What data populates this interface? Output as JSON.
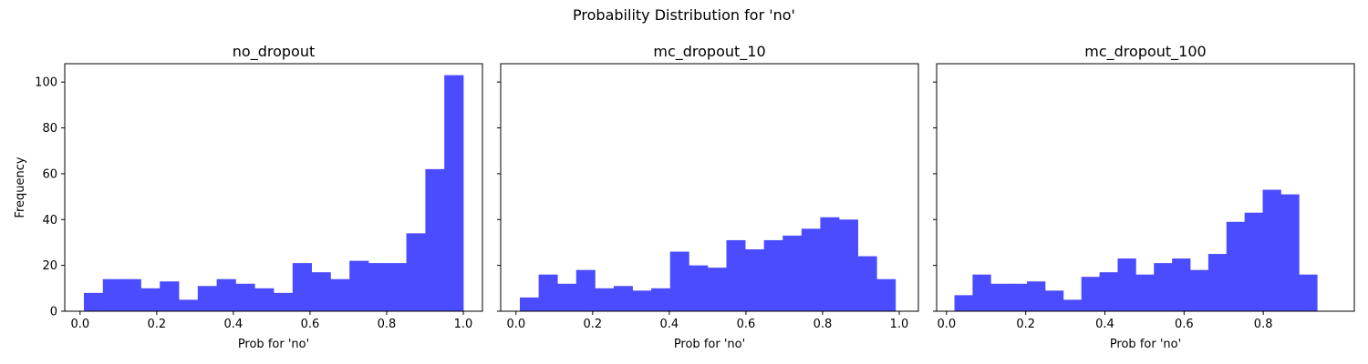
{
  "figure": {
    "suptitle": "Probability Distribution for 'no'",
    "bar_color": "#4b4bff",
    "edge_color": "#000000"
  },
  "chart_data": [
    {
      "type": "bar",
      "title": "no_dropout",
      "xlabel": "Prob for 'no'",
      "ylabel": "Frequency",
      "xlim": [
        -0.04,
        1.05
      ],
      "ylim": [
        0,
        108
      ],
      "x_ticks": [
        0.0,
        0.2,
        0.4,
        0.6,
        0.8,
        1.0
      ],
      "x_tick_labels": [
        "0.0",
        "0.2",
        "0.4",
        "0.6",
        "0.8",
        "1.0"
      ],
      "y_ticks": [
        0,
        20,
        40,
        60,
        80,
        100
      ],
      "y_tick_labels": [
        "0",
        "20",
        "40",
        "60",
        "80",
        "100"
      ],
      "show_y_tick_labels": true,
      "bin_edges": [
        0.01,
        0.0595,
        0.109,
        0.1585,
        0.208,
        0.2575,
        0.307,
        0.3565,
        0.406,
        0.4555,
        0.505,
        0.5545,
        0.604,
        0.6535,
        0.703,
        0.7525,
        0.802,
        0.8515,
        0.901,
        0.9505,
        1.0
      ],
      "values": [
        8,
        14,
        14,
        10,
        13,
        5,
        11,
        14,
        12,
        10,
        8,
        21,
        17,
        14,
        22,
        21,
        21,
        34,
        62,
        103
      ]
    },
    {
      "type": "bar",
      "title": "mc_dropout_10",
      "xlabel": "Prob for 'no'",
      "ylabel": "",
      "xlim": [
        -0.04,
        1.05
      ],
      "ylim": [
        0,
        108
      ],
      "x_ticks": [
        0.0,
        0.2,
        0.4,
        0.6,
        0.8,
        1.0
      ],
      "x_tick_labels": [
        "0.0",
        "0.2",
        "0.4",
        "0.6",
        "0.8",
        "1.0"
      ],
      "y_ticks": [
        0,
        20,
        40,
        60,
        80,
        100
      ],
      "y_tick_labels": [],
      "show_y_tick_labels": false,
      "bin_edges": [
        0.01,
        0.059,
        0.108,
        0.157,
        0.206,
        0.255,
        0.304,
        0.353,
        0.402,
        0.451,
        0.5,
        0.549,
        0.598,
        0.647,
        0.696,
        0.745,
        0.794,
        0.843,
        0.892,
        0.941,
        0.99
      ],
      "values": [
        6,
        16,
        12,
        18,
        10,
        11,
        9,
        10,
        26,
        20,
        19,
        31,
        27,
        31,
        33,
        36,
        41,
        40,
        24,
        14
      ]
    },
    {
      "type": "bar",
      "title": "mc_dropout_100",
      "xlabel": "Prob for 'no'",
      "ylabel": "",
      "xlim": [
        -0.025,
        1.03
      ],
      "ylim": [
        0,
        108
      ],
      "x_ticks": [
        0.0,
        0.2,
        0.4,
        0.6,
        0.8
      ],
      "x_tick_labels": [
        "0.0",
        "0.2",
        "0.4",
        "0.6",
        "0.8"
      ],
      "y_ticks": [
        0,
        20,
        40,
        60,
        80,
        100
      ],
      "y_tick_labels": [],
      "show_y_tick_labels": false,
      "bin_edges": [
        0.02,
        0.0658,
        0.1116,
        0.1574,
        0.2032,
        0.249,
        0.2948,
        0.3406,
        0.3864,
        0.4322,
        0.478,
        0.5238,
        0.5696,
        0.6154,
        0.6612,
        0.707,
        0.7528,
        0.7986,
        0.8444,
        0.8902,
        0.936
      ],
      "values": [
        7,
        16,
        12,
        12,
        13,
        9,
        5,
        15,
        17,
        23,
        16,
        21,
        23,
        18,
        25,
        39,
        43,
        53,
        51,
        16
      ]
    }
  ]
}
